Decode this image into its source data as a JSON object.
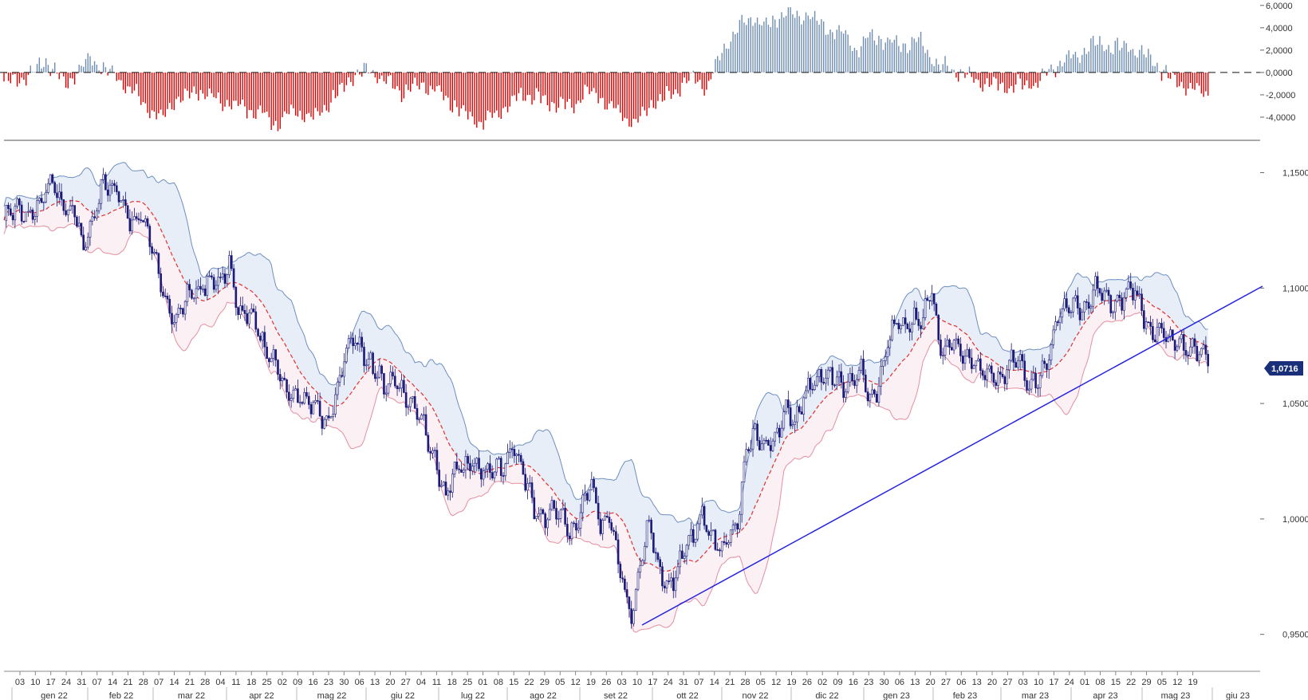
{
  "colors": {
    "candle": "#1a1a7a",
    "ma": "#e03030",
    "upper_fill": "#e8eef7",
    "upper_line": "#6d8fc0",
    "lower_fill": "#fbf0f3",
    "lower_line": "#e58fa0",
    "trendline": "#2323e0",
    "hist_pos": "#6f8db3",
    "hist_neg": "#e00000",
    "price_tag": "#1a2f7a"
  },
  "price_tag": "1,0716",
  "chart_data": [
    {
      "type": "bar",
      "panel": "oscillator",
      "title": "",
      "ylim": [
        -5.5,
        6.2
      ],
      "y_tick_labels": [
        "6,0000",
        "4,0000",
        "2,0000",
        "0,0000",
        "-2,0000",
        "-4,0000"
      ],
      "y_tick_values": [
        6,
        4,
        2,
        0,
        -2,
        -4
      ],
      "zero_line": "dashed",
      "segments_note_free": true,
      "anchors": [
        [
          0,
          -0.8
        ],
        [
          8,
          -0.6
        ],
        [
          14,
          0.2
        ],
        [
          19,
          1.2
        ],
        [
          22,
          0.4
        ],
        [
          28,
          -1.2
        ],
        [
          33,
          0.1
        ],
        [
          39,
          1.3
        ],
        [
          45,
          0.4
        ],
        [
          55,
          -1.0
        ],
        [
          65,
          -3.2
        ],
        [
          72,
          -4.1
        ],
        [
          78,
          -2.5
        ],
        [
          88,
          -1.6
        ],
        [
          98,
          -2.6
        ],
        [
          108,
          -3.1
        ],
        [
          116,
          -3.6
        ],
        [
          124,
          -4.6
        ],
        [
          131,
          -3.2
        ],
        [
          140,
          -4.2
        ],
        [
          150,
          -2.1
        ],
        [
          156,
          -0.6
        ],
        [
          165,
          0.2
        ],
        [
          172,
          -0.8
        ],
        [
          180,
          -1.8
        ],
        [
          190,
          -1.1
        ],
        [
          198,
          -1.9
        ],
        [
          208,
          -3.6
        ],
        [
          216,
          -4.6
        ],
        [
          226,
          -3.2
        ],
        [
          236,
          -1.8
        ],
        [
          246,
          -2.6
        ],
        [
          256,
          -3.2
        ],
        [
          264,
          -1.6
        ],
        [
          272,
          -2.6
        ],
        [
          278,
          -3.6
        ],
        [
          286,
          -4.6
        ],
        [
          292,
          -3.0
        ],
        [
          300,
          -2.2
        ],
        [
          307,
          -1.1
        ],
        [
          312,
          -0.4
        ],
        [
          318,
          -1.4
        ],
        [
          324,
          1.5
        ],
        [
          330,
          3.6
        ],
        [
          338,
          4.8
        ],
        [
          346,
          4.2
        ],
        [
          354,
          5.5
        ],
        [
          360,
          5.0
        ],
        [
          364,
          5.3
        ],
        [
          372,
          4.1
        ],
        [
          380,
          3.4
        ],
        [
          386,
          2.0
        ],
        [
          392,
          3.3
        ],
        [
          400,
          2.8
        ],
        [
          408,
          2.5
        ],
        [
          414,
          3.0
        ],
        [
          418,
          1.8
        ],
        [
          422,
          0.7
        ],
        [
          428,
          0.3
        ],
        [
          436,
          -0.3
        ],
        [
          442,
          -0.8
        ],
        [
          452,
          -1.3
        ],
        [
          460,
          -1.1
        ],
        [
          468,
          -0.8
        ],
        [
          474,
          0.4
        ],
        [
          482,
          1.2
        ],
        [
          488,
          1.8
        ],
        [
          494,
          2.6
        ],
        [
          502,
          2.3
        ],
        [
          510,
          2.2
        ],
        [
          516,
          1.6
        ],
        [
          522,
          0.6
        ],
        [
          528,
          -0.5
        ],
        [
          534,
          -1.0
        ],
        [
          542,
          -1.7
        ]
      ]
    },
    {
      "type": "candlestick",
      "panel": "price",
      "title": "",
      "instrument_price_tag": "1,0716",
      "ylim": [
        0.934,
        1.164
      ],
      "y_tick_labels": [
        "1,1500",
        "1,1000",
        "1,0500",
        "1,0000",
        "0,9500"
      ],
      "y_tick_values": [
        1.15,
        1.1,
        1.05,
        1.0,
        0.95
      ],
      "indicators": [
        "bollinger bands",
        "moving average (dashed)",
        "trendline"
      ],
      "anchors": [
        [
          0,
          1.131
        ],
        [
          10,
          1.133
        ],
        [
          18,
          1.138
        ],
        [
          22,
          1.145
        ],
        [
          26,
          1.138
        ],
        [
          32,
          1.131
        ],
        [
          36,
          1.115
        ],
        [
          40,
          1.13
        ],
        [
          44,
          1.146
        ],
        [
          48,
          1.143
        ],
        [
          52,
          1.138
        ],
        [
          58,
          1.131
        ],
        [
          62,
          1.131
        ],
        [
          66,
          1.12
        ],
        [
          72,
          1.1
        ],
        [
          78,
          1.085
        ],
        [
          82,
          1.094
        ],
        [
          86,
          1.1
        ],
        [
          92,
          1.103
        ],
        [
          98,
          1.1
        ],
        [
          102,
          1.114
        ],
        [
          106,
          1.09
        ],
        [
          112,
          1.085
        ],
        [
          118,
          1.077
        ],
        [
          124,
          1.065
        ],
        [
          128,
          1.052
        ],
        [
          134,
          1.055
        ],
        [
          140,
          1.048
        ],
        [
          146,
          1.04
        ],
        [
          150,
          1.055
        ],
        [
          154,
          1.07
        ],
        [
          158,
          1.075
        ],
        [
          162,
          1.074
        ],
        [
          166,
          1.07
        ],
        [
          172,
          1.055
        ],
        [
          178,
          1.062
        ],
        [
          184,
          1.05
        ],
        [
          190,
          1.04
        ],
        [
          196,
          1.025
        ],
        [
          200,
          1.008
        ],
        [
          206,
          1.022
        ],
        [
          212,
          1.026
        ],
        [
          218,
          1.018
        ],
        [
          226,
          1.025
        ],
        [
          230,
          1.032
        ],
        [
          234,
          1.02
        ],
        [
          240,
          1.007
        ],
        [
          246,
          1.0
        ],
        [
          252,
          1.002
        ],
        [
          256,
          0.995
        ],
        [
          262,
          1.004
        ],
        [
          266,
          1.015
        ],
        [
          270,
          0.998
        ],
        [
          274,
          1.002
        ],
        [
          278,
          0.98
        ],
        [
          282,
          0.962
        ],
        [
          284,
          0.958
        ],
        [
          288,
          0.983
        ],
        [
          292,
          0.998
        ],
        [
          296,
          0.978
        ],
        [
          300,
          0.972
        ],
        [
          304,
          0.978
        ],
        [
          308,
          0.985
        ],
        [
          312,
          0.99
        ],
        [
          316,
          1.003
        ],
        [
          320,
          0.995
        ],
        [
          324,
          0.985
        ],
        [
          328,
          0.99
        ],
        [
          332,
          1.0
        ],
        [
          336,
          1.03
        ],
        [
          340,
          1.035
        ],
        [
          344,
          1.03
        ],
        [
          350,
          1.04
        ],
        [
          354,
          1.045
        ],
        [
          358,
          1.04
        ],
        [
          362,
          1.055
        ],
        [
          366,
          1.062
        ],
        [
          372,
          1.058
        ],
        [
          376,
          1.062
        ],
        [
          382,
          1.058
        ],
        [
          388,
          1.062
        ],
        [
          392,
          1.052
        ],
        [
          396,
          1.06
        ],
        [
          400,
          1.075
        ],
        [
          404,
          1.083
        ],
        [
          408,
          1.085
        ],
        [
          412,
          1.088
        ],
        [
          416,
          1.085
        ],
        [
          420,
          1.098
        ],
        [
          424,
          1.075
        ],
        [
          428,
          1.078
        ],
        [
          434,
          1.07
        ],
        [
          440,
          1.07
        ],
        [
          444,
          1.063
        ],
        [
          448,
          1.058
        ],
        [
          452,
          1.06
        ],
        [
          456,
          1.072
        ],
        [
          460,
          1.068
        ],
        [
          464,
          1.055
        ],
        [
          468,
          1.062
        ],
        [
          472,
          1.07
        ],
        [
          476,
          1.083
        ],
        [
          480,
          1.09
        ],
        [
          486,
          1.095
        ],
        [
          490,
          1.09
        ],
        [
          494,
          1.098
        ],
        [
          500,
          1.096
        ],
        [
          504,
          1.094
        ],
        [
          508,
          1.096
        ],
        [
          512,
          1.098
        ],
        [
          516,
          1.09
        ],
        [
          520,
          1.082
        ],
        [
          524,
          1.078
        ],
        [
          528,
          1.076
        ],
        [
          532,
          1.078
        ],
        [
          536,
          1.074
        ],
        [
          540,
          1.071
        ]
      ]
    }
  ],
  "x_axis": {
    "day_ticks": [
      "03",
      "10",
      "17",
      "24",
      "31",
      "07",
      "14",
      "21",
      "28",
      "07",
      "14",
      "21",
      "28",
      "04",
      "11",
      "18",
      "25",
      "02",
      "09",
      "16",
      "23",
      "30",
      "06",
      "13",
      "20",
      "27",
      "04",
      "11",
      "18",
      "25",
      "01",
      "08",
      "15",
      "22",
      "29",
      "05",
      "12",
      "19",
      "26",
      "03",
      "10",
      "17",
      "24",
      "31",
      "07",
      "14",
      "21",
      "28",
      "05",
      "12",
      "19",
      "26",
      "02",
      "09",
      "16",
      "23",
      "30",
      "06",
      "13",
      "20",
      "27",
      "06",
      "13",
      "20",
      "27",
      "03",
      "10",
      "17",
      "24",
      "01",
      "08",
      "15",
      "22",
      "29",
      "05",
      "12",
      "19"
    ],
    "month_labels": [
      "gen 22",
      "feb 22",
      "mar 22",
      "apr 22",
      "mag 22",
      "giu 22",
      "lug 22",
      "ago 22",
      "set 22",
      "ott 22",
      "nov 22",
      "dic 22",
      "gen 23",
      "feb 23",
      "mar 23",
      "apr 23",
      "mag 23",
      "giu 23"
    ]
  }
}
